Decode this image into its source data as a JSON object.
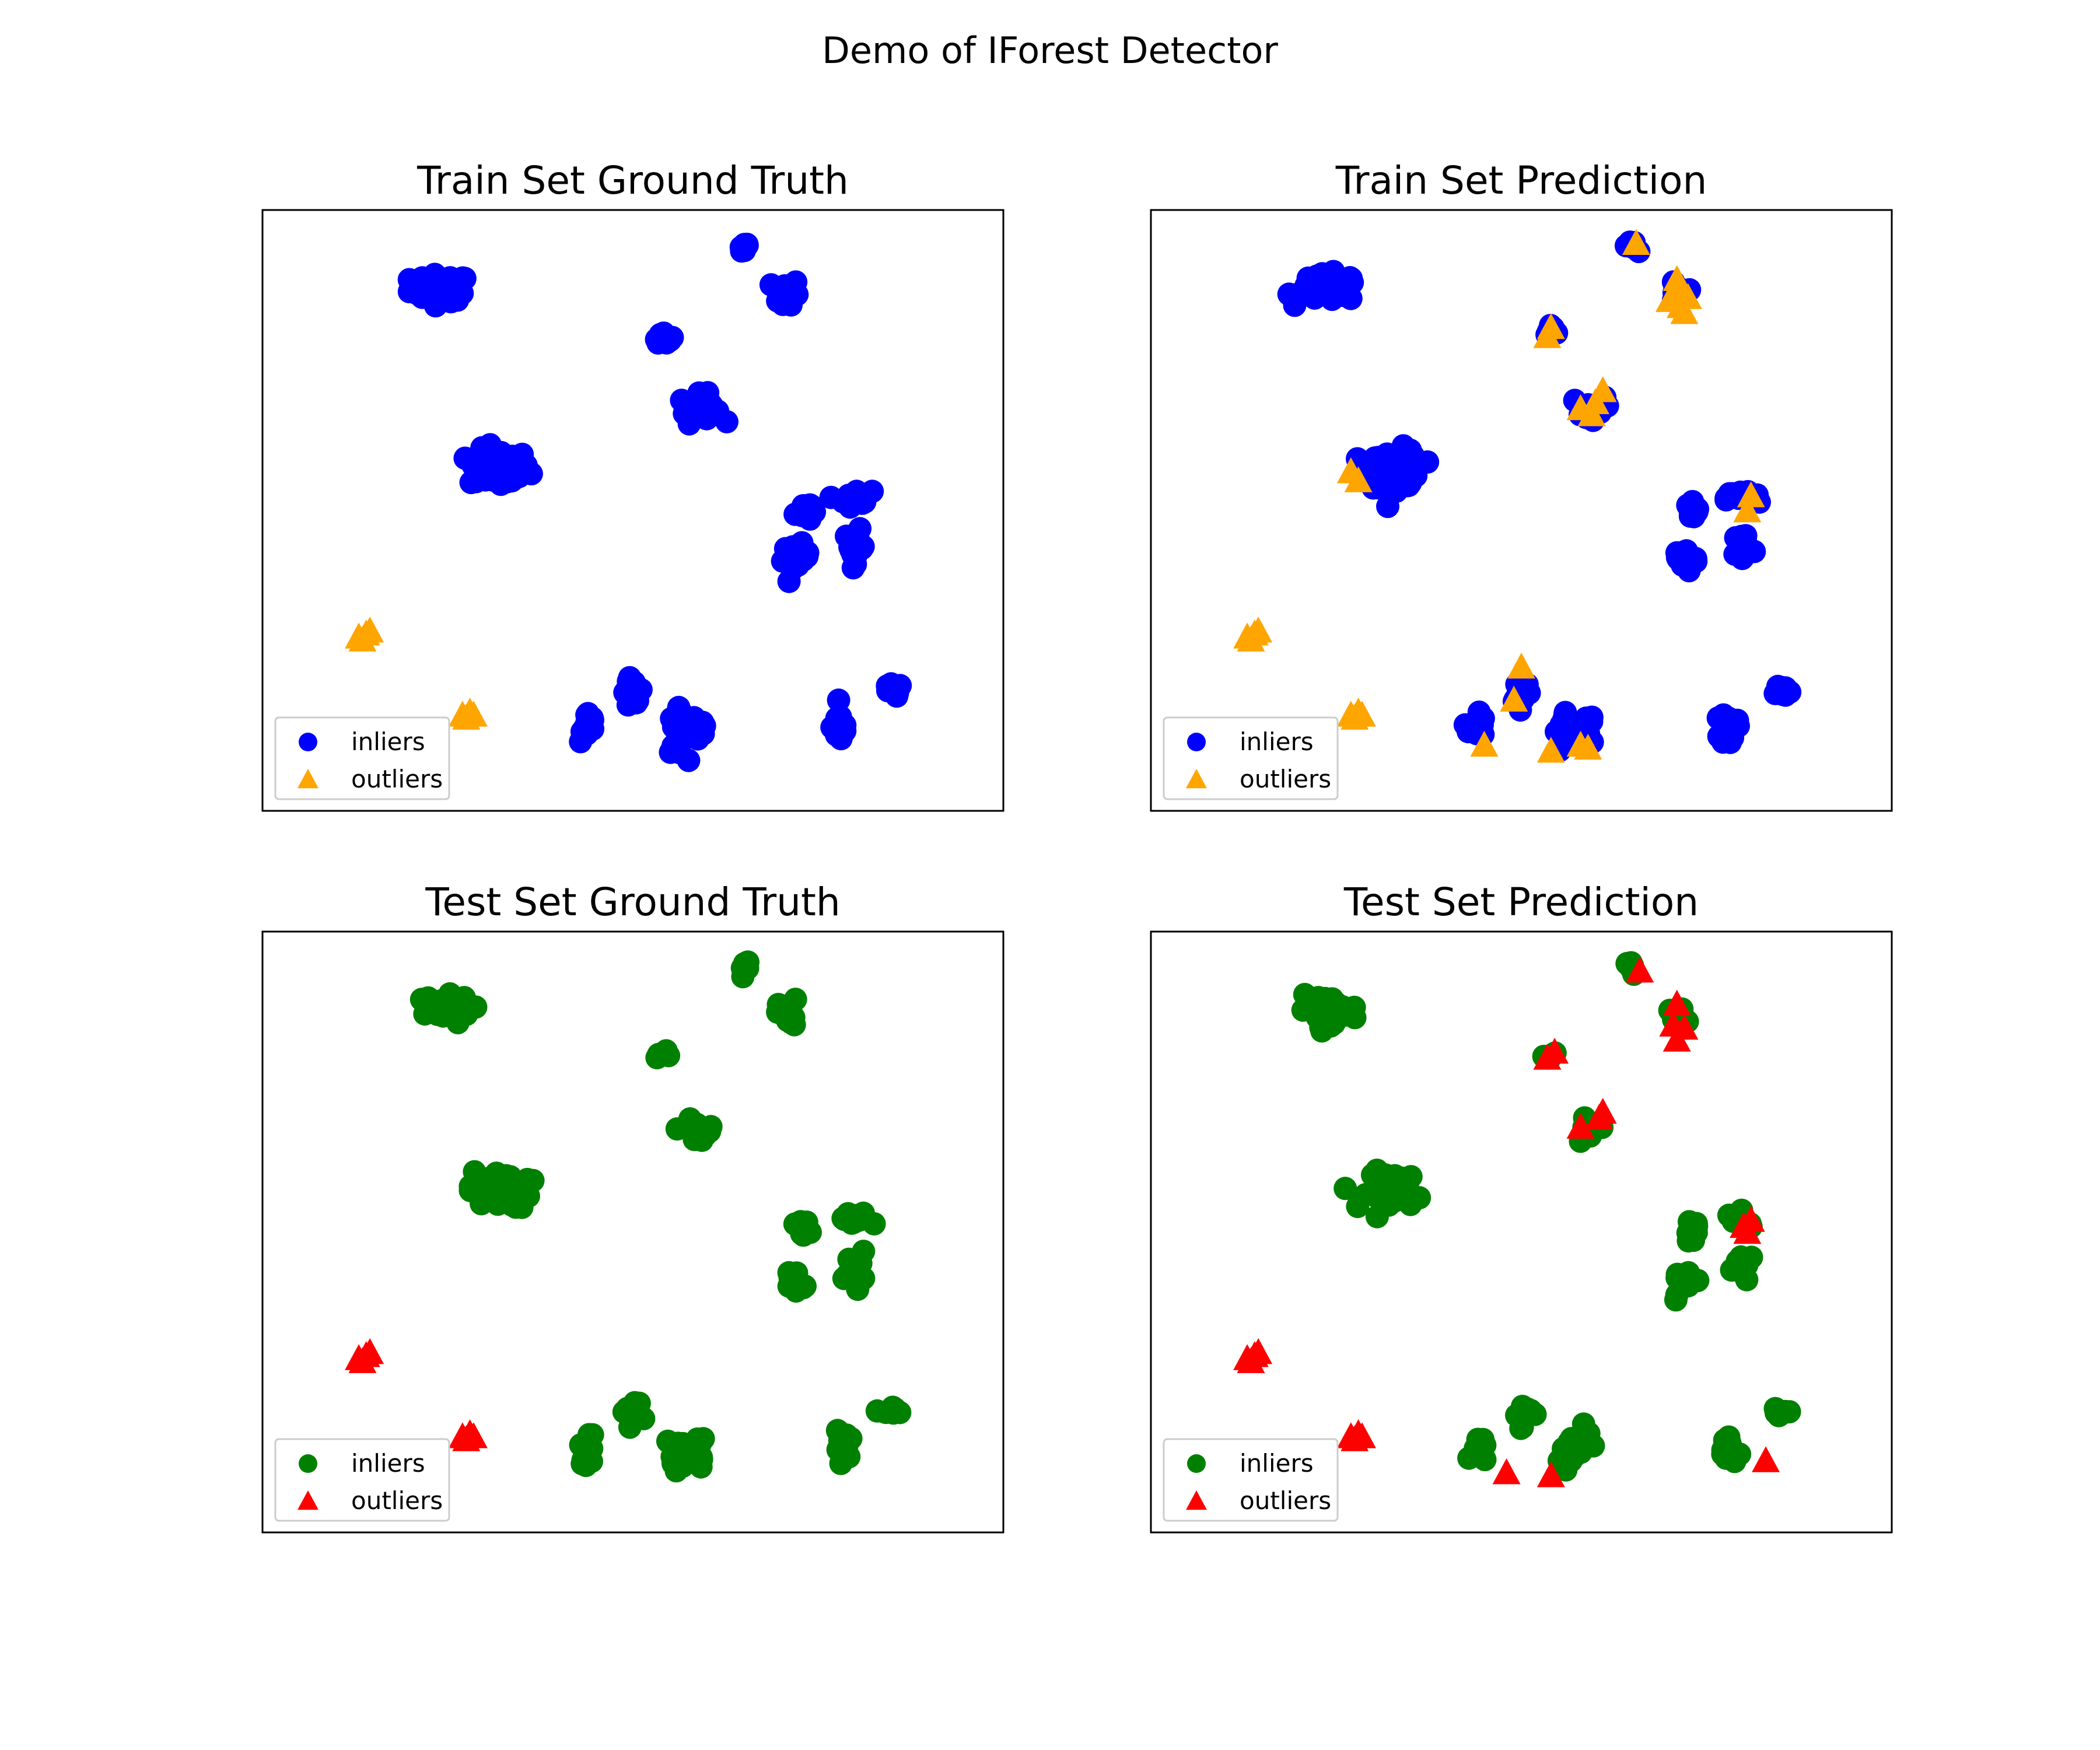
{
  "figure": {
    "suptitle": "Demo of IForest Detector"
  },
  "colors": {
    "train_inlier": "#0000ff",
    "train_outlier": "#ffa500",
    "test_inlier": "#008000",
    "test_outlier": "#ff0000"
  },
  "chart_data": [
    {
      "type": "scatter",
      "title": "Train Set Ground Truth",
      "xlim": [
        0,
        100
      ],
      "ylim": [
        0,
        100
      ],
      "axes_ticks": "hidden",
      "legend": {
        "position": "lower-left",
        "entries": [
          {
            "label": "inliers",
            "marker": "circle",
            "color": "#0000ff"
          },
          {
            "label": "outliers",
            "marker": "triangle",
            "color": "#ffa500"
          }
        ]
      },
      "series": [
        {
          "name": "inliers",
          "marker": "circle",
          "color": "#0000ff",
          "clusters": [
            {
              "cx": 24,
              "cy": 87,
              "sx": 4.5,
              "sy": 2.5,
              "n": 60
            },
            {
              "cx": 32,
              "cy": 57,
              "sx": 4.5,
              "sy": 3.5,
              "n": 80
            },
            {
              "cx": 65,
              "cy": 94,
              "sx": 0.8,
              "sy": 1.5,
              "n": 12
            },
            {
              "cx": 71,
              "cy": 86,
              "sx": 1.5,
              "sy": 3,
              "n": 25
            },
            {
              "cx": 54,
              "cy": 79,
              "sx": 1.3,
              "sy": 1.2,
              "n": 10
            },
            {
              "cx": 59,
              "cy": 67,
              "sx": 3,
              "sy": 2.5,
              "n": 25
            },
            {
              "cx": 73,
              "cy": 50,
              "sx": 1.2,
              "sy": 2,
              "n": 14
            },
            {
              "cx": 80,
              "cy": 52,
              "sx": 2.5,
              "sy": 1.5,
              "n": 20
            },
            {
              "cx": 72,
              "cy": 42,
              "sx": 2,
              "sy": 2.5,
              "n": 22
            },
            {
              "cx": 80,
              "cy": 44,
              "sx": 1.5,
              "sy": 3,
              "n": 20
            },
            {
              "cx": 50,
              "cy": 20,
              "sx": 1.5,
              "sy": 2.5,
              "n": 18
            },
            {
              "cx": 56,
              "cy": 13,
              "sx": 1.5,
              "sy": 4,
              "n": 20
            },
            {
              "cx": 44,
              "cy": 14,
              "sx": 1.2,
              "sy": 3,
              "n": 16
            },
            {
              "cx": 59,
              "cy": 14,
              "sx": 1.2,
              "sy": 4,
              "n": 14
            },
            {
              "cx": 78,
              "cy": 14,
              "sx": 1.2,
              "sy": 3,
              "n": 20
            },
            {
              "cx": 85,
              "cy": 20,
              "sx": 1.5,
              "sy": 1.2,
              "n": 12
            }
          ]
        },
        {
          "name": "outliers",
          "marker": "triangle",
          "color": "#ffa500",
          "points": [
            [
              13,
              29
            ],
            [
              14,
              29.5
            ],
            [
              14.5,
              30
            ],
            [
              13.5,
              28.5
            ],
            [
              27,
              16
            ],
            [
              28.5,
              16
            ],
            [
              27.5,
              15.5
            ],
            [
              28,
              16.5
            ]
          ]
        }
      ]
    },
    {
      "type": "scatter",
      "title": "Train Set Prediction",
      "xlim": [
        0,
        100
      ],
      "ylim": [
        0,
        100
      ],
      "axes_ticks": "hidden",
      "legend": {
        "position": "lower-left",
        "entries": [
          {
            "label": "inliers",
            "marker": "circle",
            "color": "#0000ff"
          },
          {
            "label": "outliers",
            "marker": "triangle",
            "color": "#ffa500"
          }
        ]
      },
      "series": [
        {
          "name": "inliers",
          "marker": "circle",
          "color": "#0000ff",
          "clusters": [
            {
              "cx": 24,
              "cy": 87,
              "sx": 4.5,
              "sy": 2.5,
              "n": 60
            },
            {
              "cx": 33,
              "cy": 57,
              "sx": 4,
              "sy": 3.5,
              "n": 80
            },
            {
              "cx": 65,
              "cy": 94,
              "sx": 0.8,
              "sy": 1.2,
              "n": 8
            },
            {
              "cx": 71,
              "cy": 86,
              "sx": 1.2,
              "sy": 2,
              "n": 14
            },
            {
              "cx": 54,
              "cy": 80,
              "sx": 1.0,
              "sy": 1.0,
              "n": 6
            },
            {
              "cx": 59,
              "cy": 67,
              "sx": 2.5,
              "sy": 2,
              "n": 16
            },
            {
              "cx": 73,
              "cy": 50,
              "sx": 1.2,
              "sy": 2,
              "n": 14
            },
            {
              "cx": 80,
              "cy": 52,
              "sx": 2.5,
              "sy": 1.5,
              "n": 18
            },
            {
              "cx": 72,
              "cy": 42,
              "sx": 2,
              "sy": 2.5,
              "n": 22
            },
            {
              "cx": 80,
              "cy": 44,
              "sx": 1.5,
              "sy": 3,
              "n": 20
            },
            {
              "cx": 50,
              "cy": 20,
              "sx": 1.5,
              "sy": 2.5,
              "n": 16
            },
            {
              "cx": 56,
              "cy": 13,
              "sx": 1.5,
              "sy": 4,
              "n": 18
            },
            {
              "cx": 44,
              "cy": 14,
              "sx": 1.2,
              "sy": 3,
              "n": 14
            },
            {
              "cx": 59,
              "cy": 14,
              "sx": 1.2,
              "sy": 4,
              "n": 12
            },
            {
              "cx": 78,
              "cy": 14,
              "sx": 1.2,
              "sy": 3,
              "n": 20
            },
            {
              "cx": 85,
              "cy": 20,
              "sx": 1.5,
              "sy": 1.2,
              "n": 12
            }
          ]
        },
        {
          "name": "outliers",
          "marker": "triangle",
          "color": "#ffa500",
          "points": [
            [
              13,
              29
            ],
            [
              14,
              29.5
            ],
            [
              14.5,
              30
            ],
            [
              13.5,
              28.5
            ],
            [
              27,
              16
            ],
            [
              28.5,
              16
            ],
            [
              27.5,
              15.5
            ],
            [
              28,
              16.5
            ],
            [
              65.5,
              94.5
            ],
            [
              71,
              87
            ],
            [
              71.5,
              84
            ],
            [
              70,
              85
            ],
            [
              72,
              83
            ],
            [
              71,
              88.5
            ],
            [
              72.5,
              85.5
            ],
            [
              54,
              80.5
            ],
            [
              53.5,
              79
            ],
            [
              61,
              70
            ],
            [
              58,
              67
            ],
            [
              59.5,
              66
            ],
            [
              60,
              68
            ],
            [
              27,
              56.5
            ],
            [
              28,
              55
            ],
            [
              81,
              52.5
            ],
            [
              80.5,
              50
            ],
            [
              50,
              24
            ],
            [
              49,
              18.5
            ],
            [
              45,
              11
            ],
            [
              54,
              10
            ],
            [
              59,
              10.5
            ],
            [
              58,
              11
            ]
          ]
        }
      ]
    },
    {
      "type": "scatter",
      "title": "Test Set Ground Truth",
      "xlim": [
        0,
        100
      ],
      "ylim": [
        0,
        100
      ],
      "axes_ticks": "hidden",
      "legend": {
        "position": "lower-left",
        "entries": [
          {
            "label": "inliers",
            "marker": "circle",
            "color": "#008000"
          },
          {
            "label": "outliers",
            "marker": "triangle",
            "color": "#ff0000"
          }
        ]
      },
      "series": [
        {
          "name": "inliers",
          "marker": "circle",
          "color": "#008000",
          "clusters": [
            {
              "cx": 24,
              "cy": 87,
              "sx": 4.5,
              "sy": 2.5,
              "n": 40
            },
            {
              "cx": 32,
              "cy": 57,
              "sx": 4.5,
              "sy": 3.5,
              "n": 50
            },
            {
              "cx": 65,
              "cy": 94,
              "sx": 0.8,
              "sy": 1.5,
              "n": 8
            },
            {
              "cx": 71,
              "cy": 86,
              "sx": 1.5,
              "sy": 3,
              "n": 15
            },
            {
              "cx": 54,
              "cy": 79,
              "sx": 1.3,
              "sy": 1.2,
              "n": 6
            },
            {
              "cx": 59,
              "cy": 67,
              "sx": 3,
              "sy": 2.5,
              "n": 15
            },
            {
              "cx": 73,
              "cy": 50,
              "sx": 1.2,
              "sy": 2,
              "n": 10
            },
            {
              "cx": 80,
              "cy": 52,
              "sx": 2.5,
              "sy": 1.5,
              "n": 14
            },
            {
              "cx": 72,
              "cy": 42,
              "sx": 2,
              "sy": 2.5,
              "n": 16
            },
            {
              "cx": 80,
              "cy": 44,
              "sx": 1.5,
              "sy": 3,
              "n": 14
            },
            {
              "cx": 50,
              "cy": 20,
              "sx": 1.5,
              "sy": 2.5,
              "n": 10
            },
            {
              "cx": 56,
              "cy": 13,
              "sx": 1.5,
              "sy": 4,
              "n": 12
            },
            {
              "cx": 44,
              "cy": 14,
              "sx": 1.2,
              "sy": 3,
              "n": 10
            },
            {
              "cx": 59,
              "cy": 14,
              "sx": 1.2,
              "sy": 4,
              "n": 8
            },
            {
              "cx": 78,
              "cy": 14,
              "sx": 1.2,
              "sy": 3,
              "n": 14
            },
            {
              "cx": 85,
              "cy": 20,
              "sx": 1.5,
              "sy": 1.2,
              "n": 8
            }
          ]
        },
        {
          "name": "outliers",
          "marker": "triangle",
          "color": "#ff0000",
          "points": [
            [
              13,
              29
            ],
            [
              14,
              29.5
            ],
            [
              14.5,
              30
            ],
            [
              13.5,
              28.5
            ],
            [
              27,
              16
            ],
            [
              28.5,
              16
            ],
            [
              27.5,
              15.5
            ],
            [
              28,
              16.5
            ]
          ]
        }
      ]
    },
    {
      "type": "scatter",
      "title": "Test Set Prediction",
      "xlim": [
        0,
        100
      ],
      "ylim": [
        0,
        100
      ],
      "axes_ticks": "hidden",
      "legend": {
        "position": "lower-left",
        "entries": [
          {
            "label": "inliers",
            "marker": "circle",
            "color": "#008000"
          },
          {
            "label": "outliers",
            "marker": "triangle",
            "color": "#ff0000"
          }
        ]
      },
      "series": [
        {
          "name": "inliers",
          "marker": "circle",
          "color": "#008000",
          "clusters": [
            {
              "cx": 24,
              "cy": 87,
              "sx": 4.5,
              "sy": 2.5,
              "n": 40
            },
            {
              "cx": 33,
              "cy": 57,
              "sx": 4,
              "sy": 3.5,
              "n": 50
            },
            {
              "cx": 65,
              "cy": 94,
              "sx": 0.8,
              "sy": 1.2,
              "n": 6
            },
            {
              "cx": 71,
              "cy": 86,
              "sx": 1.2,
              "sy": 2,
              "n": 10
            },
            {
              "cx": 54,
              "cy": 80,
              "sx": 1.0,
              "sy": 1.0,
              "n": 4
            },
            {
              "cx": 59,
              "cy": 67,
              "sx": 2.5,
              "sy": 2,
              "n": 10
            },
            {
              "cx": 73,
              "cy": 50,
              "sx": 1.2,
              "sy": 2,
              "n": 10
            },
            {
              "cx": 80,
              "cy": 52,
              "sx": 2.5,
              "sy": 1.5,
              "n": 12
            },
            {
              "cx": 72,
              "cy": 42,
              "sx": 2,
              "sy": 2.5,
              "n": 16
            },
            {
              "cx": 80,
              "cy": 44,
              "sx": 1.5,
              "sy": 3,
              "n": 14
            },
            {
              "cx": 50,
              "cy": 20,
              "sx": 1.5,
              "sy": 2.5,
              "n": 10
            },
            {
              "cx": 56,
              "cy": 13,
              "sx": 1.5,
              "sy": 4,
              "n": 12
            },
            {
              "cx": 44,
              "cy": 14,
              "sx": 1.2,
              "sy": 3,
              "n": 10
            },
            {
              "cx": 59,
              "cy": 14,
              "sx": 1.2,
              "sy": 4,
              "n": 8
            },
            {
              "cx": 78,
              "cy": 14,
              "sx": 1.2,
              "sy": 3,
              "n": 14
            },
            {
              "cx": 85,
              "cy": 20,
              "sx": 1.5,
              "sy": 1.2,
              "n": 8
            }
          ]
        },
        {
          "name": "outliers",
          "marker": "triangle",
          "color": "#ff0000",
          "points": [
            [
              13,
              29
            ],
            [
              14,
              29.5
            ],
            [
              14.5,
              30
            ],
            [
              13.5,
              28.5
            ],
            [
              27,
              16
            ],
            [
              28.5,
              16
            ],
            [
              27.5,
              15.5
            ],
            [
              28,
              16.5
            ],
            [
              66,
              93.5
            ],
            [
              71,
              88
            ],
            [
              72,
              84
            ],
            [
              71,
              82
            ],
            [
              70.5,
              84.5
            ],
            [
              54.5,
              80
            ],
            [
              53.5,
              79
            ],
            [
              61,
              70
            ],
            [
              58,
              67.5
            ],
            [
              60.5,
              69
            ],
            [
              80,
              51
            ],
            [
              81,
              52
            ],
            [
              80.5,
              50
            ],
            [
              48,
              10
            ],
            [
              54,
              9.5
            ],
            [
              83,
              12
            ]
          ]
        }
      ]
    }
  ]
}
